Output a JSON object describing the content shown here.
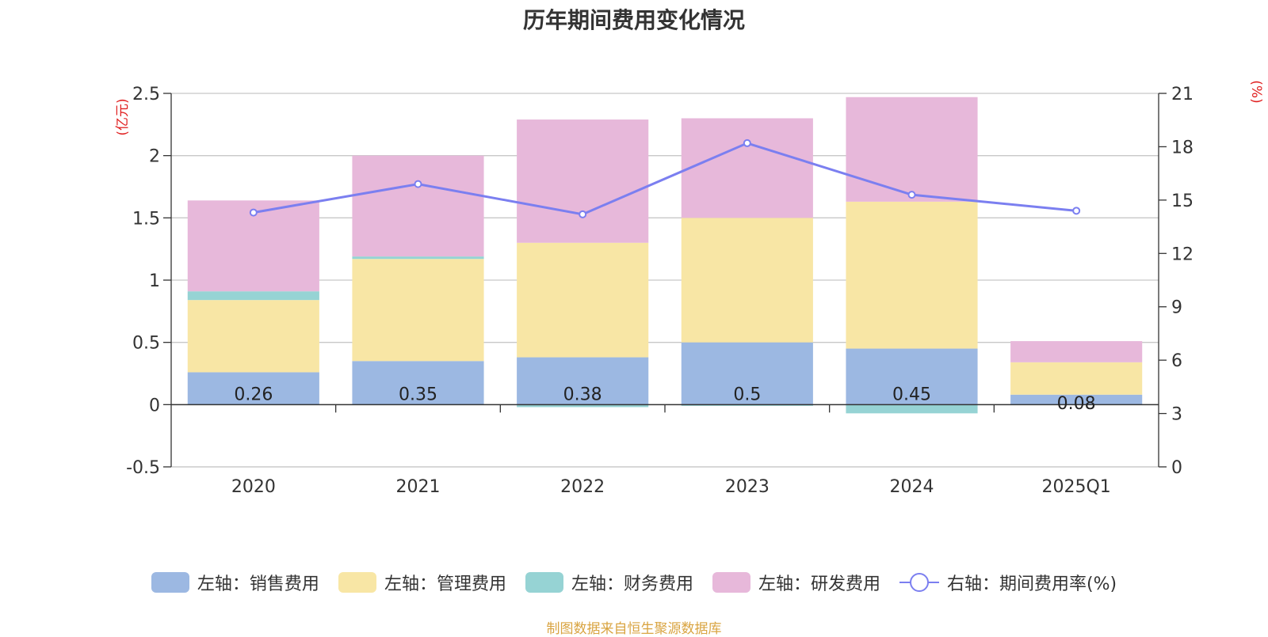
{
  "chart_data": {
    "type": "bar",
    "title": "历年期间费用变化情况",
    "categories": [
      "2020",
      "2021",
      "2022",
      "2023",
      "2024",
      "2025Q1"
    ],
    "left_axis": {
      "unit_label": "(亿元)",
      "ylim": [
        -0.5,
        2.5
      ],
      "ticks": [
        "-0.5",
        "0",
        "0.5",
        "1",
        "1.5",
        "2",
        "2.5"
      ],
      "tick_values": [
        -0.5,
        0,
        0.5,
        1,
        1.5,
        2,
        2.5
      ]
    },
    "right_axis": {
      "unit_label": "(%)",
      "ylim": [
        0,
        21
      ],
      "ticks": [
        "0",
        "3",
        "6",
        "9",
        "12",
        "15",
        "18",
        "21"
      ],
      "tick_values": [
        0,
        3,
        6,
        9,
        12,
        15,
        18,
        21
      ]
    },
    "series": [
      {
        "name": "左轴：销售费用",
        "type": "bar",
        "stack": true,
        "color": "#9cb8e2",
        "values": [
          0.26,
          0.35,
          0.38,
          0.5,
          0.45,
          0.08
        ],
        "labels": [
          "0.26",
          "0.35",
          "0.38",
          "0.5",
          "0.45",
          "0.08"
        ]
      },
      {
        "name": "左轴：管理费用",
        "type": "bar",
        "stack": true,
        "color": "#f8e6a5",
        "values": [
          0.58,
          0.82,
          0.92,
          1.0,
          1.18,
          0.26
        ]
      },
      {
        "name": "左轴：财务费用",
        "type": "bar",
        "stack": true,
        "color": "#96d3d4",
        "values": [
          0.07,
          0.02,
          -0.02,
          -0.01,
          -0.07,
          0.0
        ]
      },
      {
        "name": "左轴：研发费用",
        "type": "bar",
        "stack": true,
        "color": "#e7b8da",
        "values": [
          0.73,
          0.81,
          0.99,
          0.8,
          0.84,
          0.17
        ]
      },
      {
        "name": "右轴：期间费用率(%)",
        "type": "line",
        "axis": "right",
        "color": "#7b7ff0",
        "values": [
          14.3,
          15.9,
          14.2,
          18.2,
          15.3,
          14.4
        ]
      }
    ],
    "legend_position": "bottom"
  },
  "source": "制图数据来自恒生聚源数据库"
}
